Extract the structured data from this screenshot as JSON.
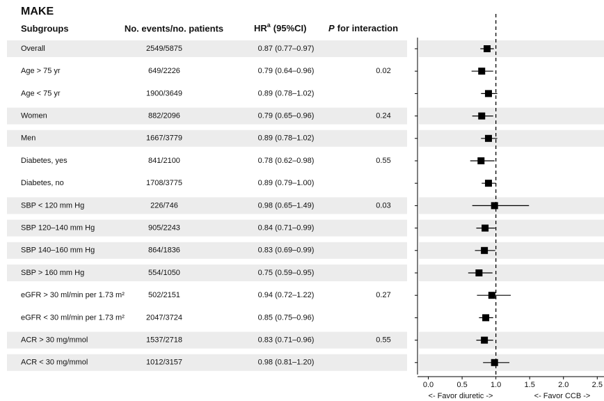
{
  "chart_data": {
    "type": "forest",
    "title": "MAKE",
    "headers": {
      "subgroups": "Subgroups",
      "events": "No. events/no. patients",
      "hr": "HR",
      "hr_sup": "a",
      "hr_ci": "(95%CI)",
      "p_italic": "P",
      "p_rest": "for interaction"
    },
    "categories": [
      "Overall",
      "Age > 75 yr",
      "Age < 75 yr",
      "Women",
      "Men",
      "Diabetes, yes",
      "Diabetes, no",
      "SBP < 120 mm Hg",
      "SBP 120–140 mm Hg",
      "SBP 140–160 mm Hg",
      "SBP > 160 mm Hg",
      "eGFR > 30 ml/min per 1.73 m²",
      "eGFR < 30 ml/min per 1.73 m²",
      "ACR > 30 mg/mmol",
      "ACR < 30 mg/mmol"
    ],
    "events": [
      "2549/5875",
      "649/2226",
      "1900/3649",
      "882/2096",
      "1667/3779",
      "841/2100",
      "1708/3775",
      "226/746",
      "905/2243",
      "864/1836",
      "554/1050",
      "502/2151",
      "2047/3724",
      "1537/2718",
      "1012/3157"
    ],
    "values": [
      0.87,
      0.79,
      0.89,
      0.79,
      0.89,
      0.78,
      0.89,
      0.98,
      0.84,
      0.83,
      0.75,
      0.94,
      0.85,
      0.83,
      0.98
    ],
    "lower": [
      0.77,
      0.64,
      0.78,
      0.65,
      0.78,
      0.62,
      0.79,
      0.65,
      0.71,
      0.69,
      0.59,
      0.72,
      0.75,
      0.71,
      0.81
    ],
    "upper": [
      0.97,
      0.96,
      1.02,
      0.96,
      1.02,
      0.98,
      1.0,
      1.49,
      0.99,
      0.99,
      0.95,
      1.22,
      0.96,
      0.96,
      1.2
    ],
    "value_labels": [
      "0.87 (0.77–0.97)",
      "0.79 (0.64–0.96)",
      "0.89 (0.78–1.02)",
      "0.79 (0.65–0.96)",
      "0.89 (0.78–1.02)",
      "0.78 (0.62–0.98)",
      "0.89 (0.79–1.00)",
      "0.98 (0.65–1.49)",
      "0.84 (0.71–0.99)",
      "0.83 (0.69–0.99)",
      "0.75 (0.59–0.95)",
      "0.94 (0.72–1.22)",
      "0.85 (0.75–0.96)",
      "0.83 (0.71–0.96)",
      "0.98 (0.81–1.20)"
    ],
    "p_interaction": [
      null,
      0.02,
      null,
      0.24,
      null,
      0.55,
      null,
      0.03,
      null,
      null,
      null,
      0.27,
      null,
      0.55,
      null
    ],
    "xlim": [
      -0.16,
      2.6
    ],
    "xticks": [
      {
        "value": 0,
        "label": "0.0"
      },
      0.5,
      {
        "value": 1,
        "label": "1.0"
      },
      1.5,
      {
        "value": 2,
        "label": "2.0"
      },
      2.5
    ],
    "refline": 1,
    "xlabel_left": "<- Favor diuretic ->",
    "xlabel_right": "<- Favor CCB ->",
    "color": "#000000",
    "band_color": "#ececec"
  }
}
